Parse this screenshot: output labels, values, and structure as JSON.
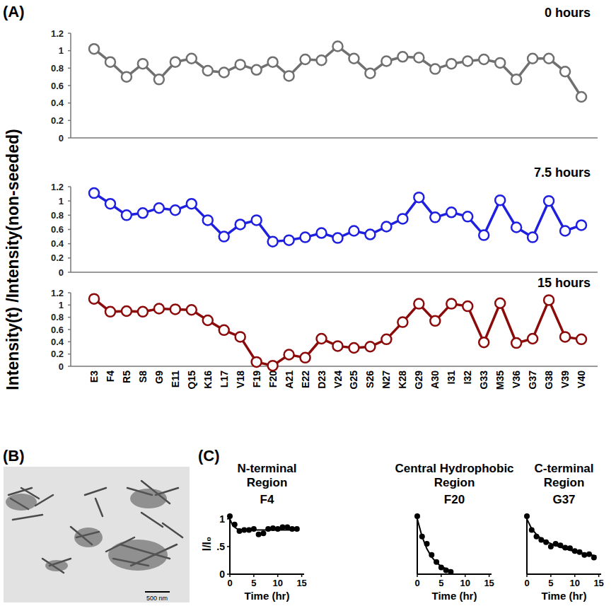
{
  "figure": {
    "panel_labels": [
      "(A)",
      "(B)",
      "(C)"
    ],
    "y_axis_title": "Intensity(t) /Intensity(non-seeded)"
  },
  "image": {
    "scale_bar": "500 nm"
  },
  "chart_data": [
    {
      "type": "line",
      "title": "0 hours",
      "color": "#707070",
      "marker": "circle",
      "tick_labels": "y",
      "values": [
        1.02,
        0.87,
        0.7,
        0.85,
        0.67,
        0.87,
        0.91,
        0.77,
        0.75,
        0.84,
        0.78,
        0.87,
        0.71,
        0.9,
        0.89,
        1.05,
        0.91,
        0.74,
        0.88,
        0.93,
        0.92,
        0.79,
        0.85,
        0.88,
        0.9,
        0.86,
        0.67,
        0.91,
        0.91,
        0.76,
        0.47
      ],
      "ylim": [
        0,
        1.2
      ],
      "yticks": [
        0,
        0.2,
        0.4,
        0.6,
        0.8,
        1,
        1.2
      ]
    },
    {
      "type": "line",
      "title": "7.5 hours",
      "color": "#1f1fe0",
      "marker": "circle",
      "tick_labels": "y",
      "values": [
        1.11,
        0.96,
        0.8,
        0.83,
        0.9,
        0.87,
        0.96,
        0.73,
        0.5,
        0.67,
        0.73,
        0.43,
        0.45,
        0.49,
        0.55,
        0.48,
        0.58,
        0.53,
        0.64,
        0.75,
        1.05,
        0.77,
        0.84,
        0.78,
        0.52,
        1.01,
        0.63,
        0.49,
        1.0,
        0.58,
        0.66
      ],
      "ylim": [
        0,
        1.2
      ],
      "yticks": [
        0,
        0.2,
        0.4,
        0.6,
        0.8,
        1,
        1.2
      ]
    },
    {
      "type": "line",
      "title": "15 hours",
      "color": "#8b0a0a",
      "marker": "circle",
      "categories": [
        "E3",
        "F4",
        "R5",
        "S8",
        "G9",
        "E11",
        "Q15",
        "K16",
        "L17",
        "V18",
        "F19",
        "F20",
        "A21",
        "E22",
        "D23",
        "V24",
        "G25",
        "S26",
        "N27",
        "K28",
        "G29",
        "A30",
        "I31",
        "I32",
        "G33",
        "M35",
        "V36",
        "G37",
        "G38",
        "V39",
        "V40"
      ],
      "values": [
        1.1,
        0.89,
        0.9,
        0.89,
        0.94,
        0.93,
        0.92,
        0.75,
        0.59,
        0.48,
        0.07,
        0.01,
        0.19,
        0.14,
        0.45,
        0.33,
        0.3,
        0.32,
        0.44,
        0.72,
        1.02,
        0.74,
        1.02,
        0.98,
        0.39,
        1.03,
        0.38,
        0.45,
        1.08,
        0.48,
        0.44
      ],
      "ylim": [
        0,
        1.2
      ],
      "yticks": [
        0,
        0.2,
        0.4,
        0.6,
        0.8,
        1,
        1.2
      ]
    },
    {
      "type": "scatter",
      "title": "N-terminal Region",
      "subtitle": "F4",
      "x_label": "Time (hr)",
      "y_label": "I/I₀",
      "xlim": [
        0,
        15.5
      ],
      "xticks": [
        0,
        5,
        10,
        15
      ],
      "ylim": [
        0,
        1.1
      ],
      "yticks": [
        0,
        {
          "value": 0.5,
          "label": ".5"
        },
        1
      ],
      "series": [
        {
          "color": "#000000",
          "marker": "circle",
          "x": [
            0,
            1,
            2,
            3,
            4,
            5,
            6,
            7,
            8,
            9,
            10,
            11,
            12,
            13,
            14
          ],
          "values": [
            1.05,
            0.9,
            0.78,
            0.8,
            0.8,
            0.82,
            0.72,
            0.74,
            0.82,
            0.83,
            0.82,
            0.85,
            0.85,
            0.82,
            0.82
          ]
        },
        {
          "type": "line",
          "color": "#000000",
          "x": [
            0,
            0.5,
            1,
            1.5,
            2,
            3,
            4,
            6,
            10,
            14.5
          ],
          "values": [
            1.0,
            0.9,
            0.85,
            0.82,
            0.81,
            0.8,
            0.8,
            0.8,
            0.8,
            0.8
          ]
        }
      ]
    },
    {
      "type": "scatter",
      "title": "Central Hydrophobic Region",
      "subtitle": "F20",
      "x_label": "Time (hr)",
      "tick_labels": "x",
      "xlim": [
        0,
        15.5
      ],
      "xticks": [
        0,
        5,
        10,
        15
      ],
      "ylim": [
        0,
        1.1
      ],
      "series": [
        {
          "color": "#000000",
          "marker": "circle",
          "x": [
            0,
            1,
            2,
            3,
            4,
            5,
            6,
            7
          ],
          "values": [
            1.05,
            0.68,
            0.55,
            0.35,
            0.22,
            0.12,
            0.07,
            0.04
          ]
        },
        {
          "type": "line",
          "color": "#000000",
          "x": [
            0,
            1,
            2,
            3,
            4,
            5,
            6,
            7
          ],
          "values": [
            1.0,
            0.68,
            0.46,
            0.31,
            0.21,
            0.14,
            0.1,
            0.06
          ]
        }
      ]
    },
    {
      "type": "scatter",
      "title": "C-terminal Region",
      "subtitle": "G37",
      "x_label": "Time (hr)",
      "tick_labels": "x",
      "xlim": [
        0,
        15.5
      ],
      "xticks": [
        0,
        5,
        10,
        15
      ],
      "ylim": [
        0,
        1.1
      ],
      "series": [
        {
          "color": "#000000",
          "marker": "circle",
          "x": [
            0,
            1,
            2,
            3,
            4,
            5,
            6,
            7,
            8,
            9,
            10,
            11,
            12,
            13,
            14
          ],
          "values": [
            1.05,
            0.8,
            0.68,
            0.62,
            0.58,
            0.5,
            0.55,
            0.52,
            0.48,
            0.47,
            0.42,
            0.4,
            0.35,
            0.36,
            0.3
          ]
        },
        {
          "type": "line",
          "color": "#000000",
          "x": [
            0,
            1,
            2,
            3,
            4,
            6,
            8,
            10,
            12,
            14.5
          ],
          "values": [
            1.0,
            0.82,
            0.72,
            0.64,
            0.59,
            0.52,
            0.46,
            0.41,
            0.37,
            0.33
          ]
        }
      ]
    }
  ]
}
